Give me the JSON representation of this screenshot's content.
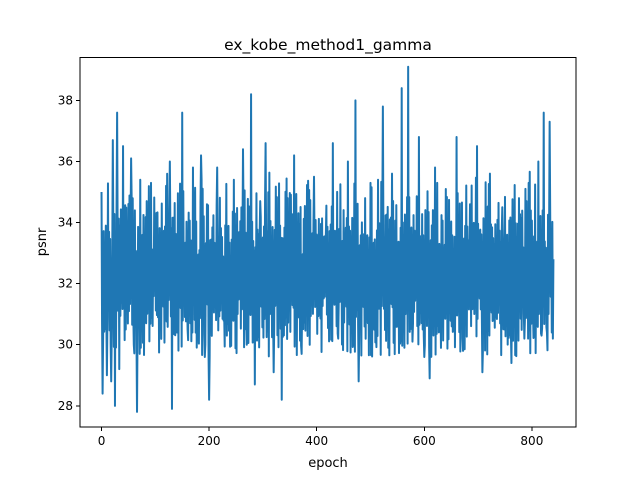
{
  "chart_data": {
    "type": "line",
    "title": "ex_kobe_method1_gamma",
    "xlabel": "epoch",
    "ylabel": "psnr",
    "xlim": [
      -40,
      882
    ],
    "ylim": [
      27.3,
      39.4
    ],
    "xticks": [
      0,
      200,
      400,
      600,
      800
    ],
    "yticks": [
      28,
      30,
      32,
      34,
      36,
      38
    ],
    "grid": false,
    "legend": "none",
    "color": "#1f77b4",
    "n_points": 841,
    "series": [
      {
        "values_note_keypoints": [
          [
            0,
            35.0
          ],
          [
            2,
            28.4
          ],
          [
            6,
            31.4
          ],
          [
            10,
            29.0
          ],
          [
            14,
            33.7
          ],
          [
            18,
            28.8
          ],
          [
            21,
            36.7
          ],
          [
            25,
            28.0
          ],
          [
            29,
            37.6
          ],
          [
            33,
            29.2
          ],
          [
            40,
            36.5
          ],
          [
            45,
            30.5
          ],
          [
            55,
            36.1
          ],
          [
            60,
            30.0
          ],
          [
            66,
            27.8
          ],
          [
            75,
            33.5
          ],
          [
            84,
            34.7
          ],
          [
            92,
            35.3
          ],
          [
            99,
            32.2
          ],
          [
            105,
            30.9
          ],
          [
            120,
            35.2
          ],
          [
            127,
            36.0
          ],
          [
            131,
            27.9
          ],
          [
            140,
            30.4
          ],
          [
            150,
            37.6
          ],
          [
            160,
            30.5
          ],
          [
            170,
            35.8
          ],
          [
            178,
            30.9
          ],
          [
            185,
            36.2
          ],
          [
            192,
            29.6
          ],
          [
            200,
            28.2
          ],
          [
            215,
            35.8
          ],
          [
            228,
            31.0
          ],
          [
            240,
            30.2
          ],
          [
            250,
            33.9
          ],
          [
            263,
            36.4
          ],
          [
            270,
            30.0
          ],
          [
            278,
            38.2
          ],
          [
            285,
            28.7
          ],
          [
            295,
            34.7
          ],
          [
            305,
            36.6
          ],
          [
            313,
            31.0
          ],
          [
            320,
            29.1
          ],
          [
            335,
            28.2
          ],
          [
            346,
            34.8
          ],
          [
            358,
            36.2
          ],
          [
            372,
            29.7
          ],
          [
            385,
            33.8
          ],
          [
            395,
            35.5
          ],
          [
            406,
            31.3
          ],
          [
            417,
            33.6
          ],
          [
            430,
            36.6
          ],
          [
            440,
            30.2
          ],
          [
            452,
            33.5
          ],
          [
            458,
            36.0
          ],
          [
            468,
            30.1
          ],
          [
            472,
            38.0
          ],
          [
            478,
            28.8
          ],
          [
            490,
            34.8
          ],
          [
            500,
            35.3
          ],
          [
            510,
            30.6
          ],
          [
            523,
            37.8
          ],
          [
            533,
            29.9
          ],
          [
            540,
            35.6
          ],
          [
            550,
            31.4
          ],
          [
            558,
            38.4
          ],
          [
            563,
            29.9
          ],
          [
            570,
            39.1
          ],
          [
            578,
            30.1
          ],
          [
            590,
            36.8
          ],
          [
            600,
            29.6
          ],
          [
            610,
            28.9
          ],
          [
            620,
            35.8
          ],
          [
            630,
            31.5
          ],
          [
            640,
            35.1
          ],
          [
            651,
            30.6
          ],
          [
            660,
            36.8
          ],
          [
            672,
            29.8
          ],
          [
            685,
            34.6
          ],
          [
            698,
            36.5
          ],
          [
            708,
            29.1
          ],
          [
            722,
            35.6
          ],
          [
            733,
            30.9
          ],
          [
            745,
            34.5
          ],
          [
            756,
            31.7
          ],
          [
            762,
            29.4
          ],
          [
            776,
            34.8
          ],
          [
            786,
            30.2
          ],
          [
            794,
            35.3
          ],
          [
            802,
            31.2
          ],
          [
            812,
            36.0
          ],
          [
            818,
            30.3
          ],
          [
            822,
            37.6
          ],
          [
            828,
            30.4
          ],
          [
            833,
            37.3
          ],
          [
            837,
            30.4
          ],
          [
            840,
            32.8
          ]
        ],
        "values": [],
        "x": []
      }
    ]
  }
}
